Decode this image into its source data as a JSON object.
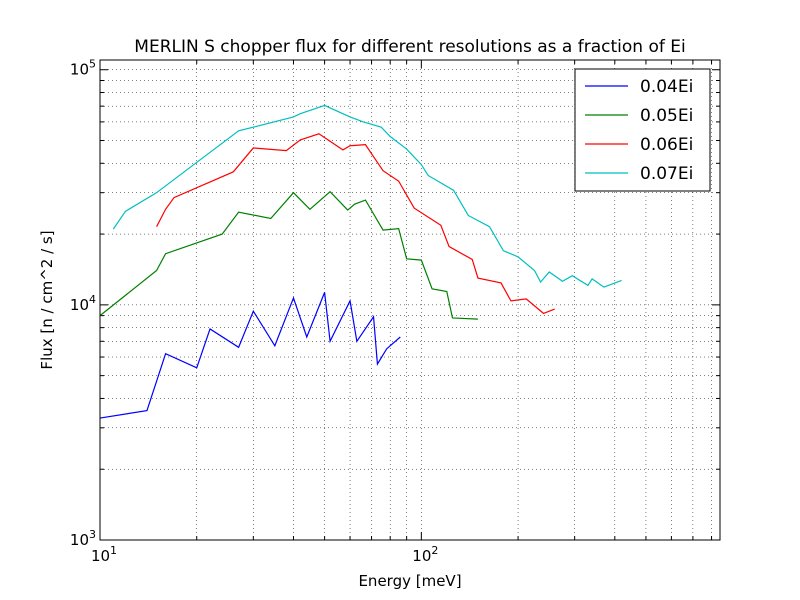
{
  "chart_data": {
    "type": "line",
    "title": "MERLIN S chopper flux for different resolutions as a fraction of Ei",
    "xlabel": "Energy [meV]",
    "ylabel": "Flux [n / cm^2 / s]",
    "xscale": "log",
    "yscale": "log",
    "xlim": [
      10,
      850
    ],
    "ylim": [
      1000,
      110000
    ],
    "grid": true,
    "legend_position": "top-right",
    "x_tick_labels": [
      {
        "value": 10,
        "base": "10",
        "exp": "1"
      },
      {
        "value": 100,
        "base": "10",
        "exp": "2"
      }
    ],
    "y_tick_labels": [
      {
        "value": 1000,
        "base": "10",
        "exp": "3"
      },
      {
        "value": 10000,
        "base": "10",
        "exp": "4"
      },
      {
        "value": 100000,
        "base": "10",
        "exp": "5"
      }
    ],
    "series": [
      {
        "name": "0.04Ei",
        "color": "#0000ff",
        "x": [
          10,
          14,
          16,
          20,
          22,
          27,
          30,
          35,
          40,
          44,
          50,
          52,
          60,
          63,
          71,
          73,
          78,
          86
        ],
        "y": [
          3300,
          3550,
          6200,
          5400,
          7900,
          6600,
          9400,
          6700,
          10700,
          7300,
          11300,
          7000,
          10400,
          7000,
          8900,
          5600,
          6500,
          7300
        ]
      },
      {
        "name": "0.05Ei",
        "color": "#008000",
        "x": [
          10,
          15,
          16,
          24,
          27,
          34,
          40,
          45,
          52,
          59,
          62,
          67,
          76,
          85,
          90,
          100,
          108,
          120,
          125,
          150
        ],
        "y": [
          9000,
          14000,
          16500,
          20000,
          24800,
          23300,
          30000,
          25500,
          30300,
          25300,
          26800,
          27900,
          20800,
          21100,
          15700,
          15500,
          11700,
          11400,
          8800,
          8700
        ]
      },
      {
        "name": "0.06Ei",
        "color": "#ff0000",
        "x": [
          15,
          16,
          17,
          26,
          30,
          38,
          42,
          48,
          57,
          60,
          67,
          76,
          85,
          95,
          115,
          122,
          144,
          150,
          177,
          190,
          212,
          240,
          260
        ],
        "y": [
          21500,
          25500,
          28600,
          36800,
          46500,
          45300,
          50300,
          53400,
          45600,
          47500,
          48000,
          37200,
          33600,
          25800,
          21800,
          17700,
          15600,
          13000,
          12400,
          10400,
          10600,
          9200,
          9600
        ]
      },
      {
        "name": "0.07Ei",
        "color": "#00bfbf",
        "x": [
          11,
          12,
          15,
          27,
          30,
          40,
          42,
          50,
          60,
          66,
          75,
          80,
          90,
          100,
          105,
          126,
          140,
          163,
          180,
          200,
          225,
          235,
          250,
          275,
          295,
          330,
          340,
          370,
          420
        ],
        "y": [
          21000,
          25000,
          30000,
          55000,
          57000,
          63000,
          65000,
          70500,
          63000,
          60000,
          57000,
          52000,
          46000,
          39500,
          35500,
          30700,
          24000,
          21500,
          17000,
          16000,
          14000,
          12500,
          13800,
          12600,
          13300,
          12100,
          12900,
          11900,
          12700
        ]
      }
    ]
  }
}
